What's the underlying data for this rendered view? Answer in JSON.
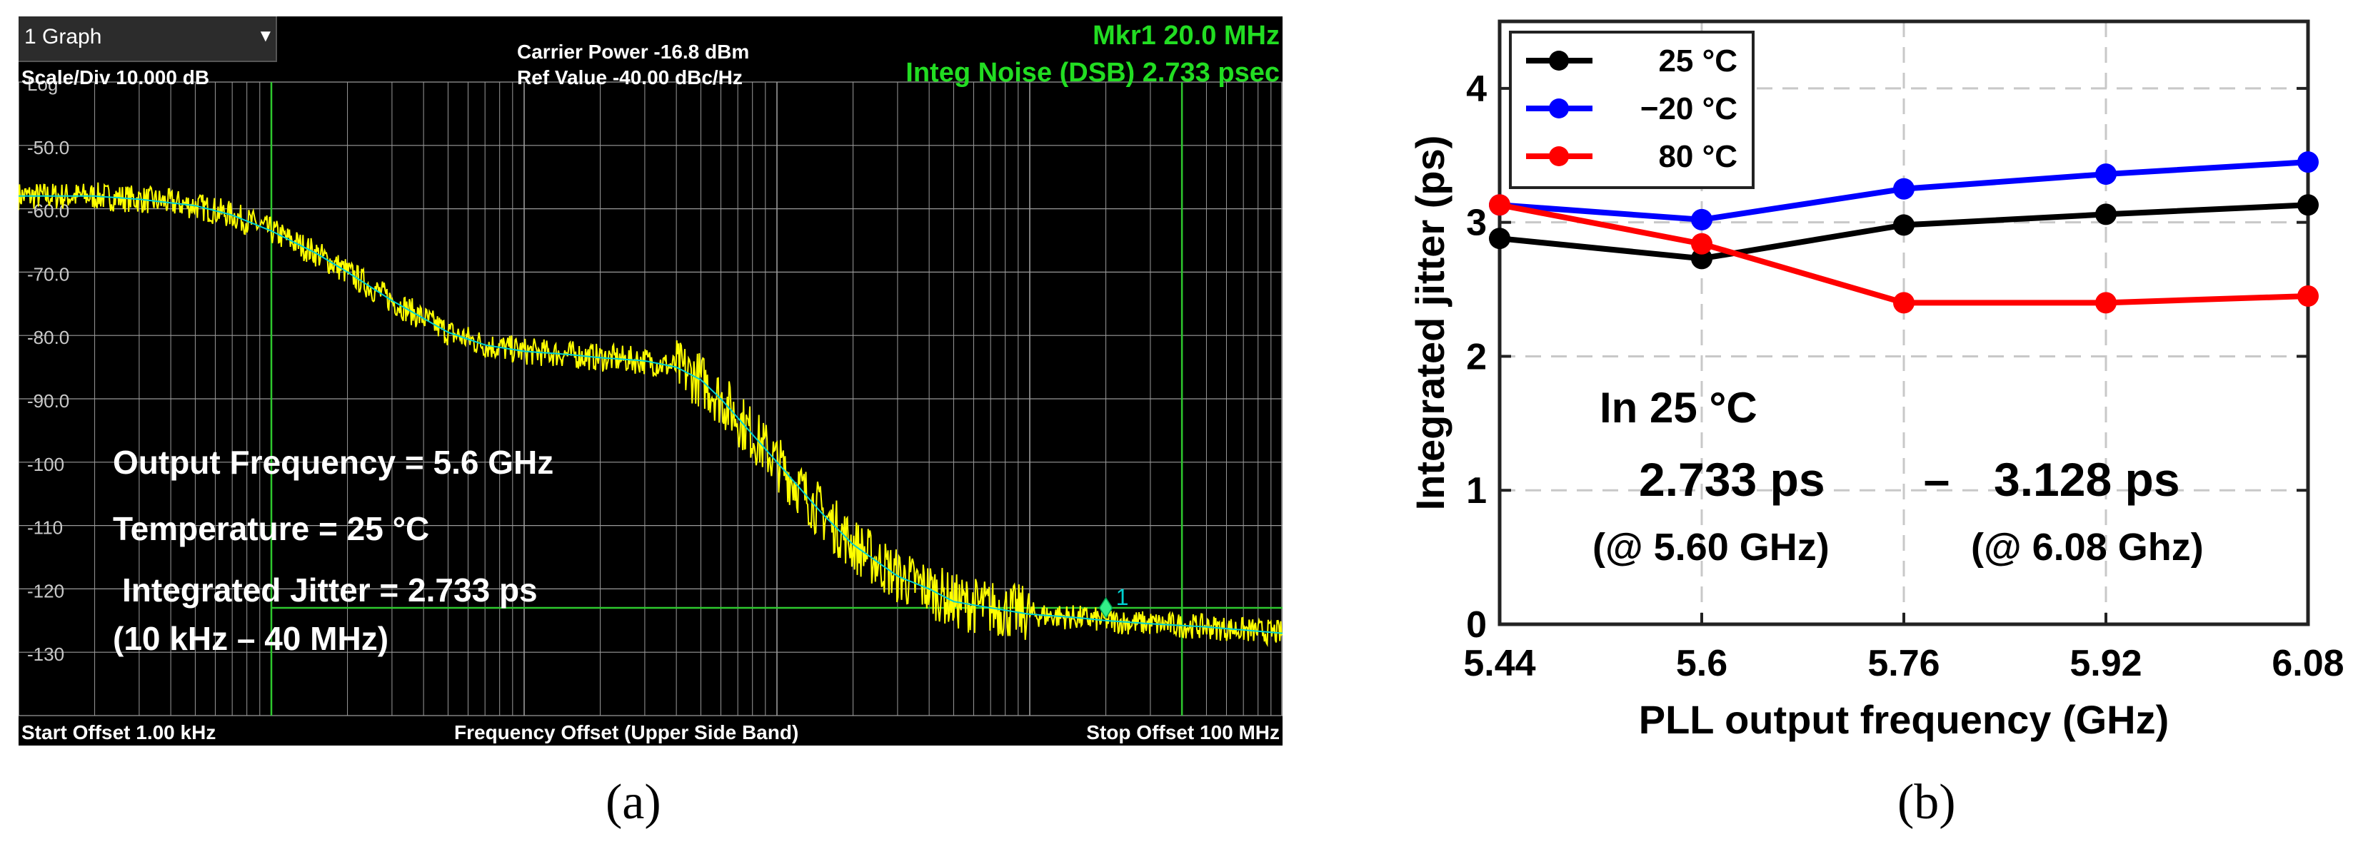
{
  "panel_a": {
    "dropdown_label": "1 Graph",
    "scale_div": "Scale/Div 10.000 dB",
    "log_label": "Log",
    "carrier_power": "Carrier Power -16.8 dBm",
    "ref_value": "Ref Value -40.00 dBc/Hz",
    "marker": "Mkr1  20.0 MHz",
    "integ_noise": "Integ Noise (DSB)  2.733 psec",
    "start_offset": "Start Offset 1.00 kHz",
    "x_axis_label": "Frequency Offset (Upper Side Band)",
    "stop_offset": "Stop Offset 100 MHz",
    "annotations": [
      "Output Frequency = 5.6 GHz",
      "Temperature = 25 °C",
      " Integrated Jitter = 2.733 ps",
      "(10 kHz – 40 MHz)"
    ],
    "marker_tag": "1",
    "caption": "(a)",
    "colors": {
      "trace": "#ffff00",
      "smooth": "#00d0d0",
      "grid": "#9a9a9a",
      "green_lines": "#2ec82e",
      "header_green": "#22dd22"
    }
  },
  "panel_b": {
    "caption": "(b)",
    "in_label": "In 25 °C",
    "value_low": "2.733 ps",
    "dash": "–",
    "value_high": "3.128 ps",
    "at_low": "(@ 5.60 GHz)",
    "at_high": "(@ 6.08 Ghz)"
  },
  "chart_data": [
    {
      "type": "line",
      "title": "",
      "xlabel": "Frequency Offset (Upper Side Band)",
      "ylabel": "",
      "x_scale": "log",
      "x_range_hz": [
        1000,
        100000000
      ],
      "ylim": [
        -140,
        -40
      ],
      "y_ticks": [
        "Log",
        "-50.0",
        "-60.0",
        "-70.0",
        "-80.0",
        "-90.0",
        "-100",
        "-110",
        "-120",
        "-130"
      ],
      "marker": {
        "x_hz": 20000000,
        "y": -123,
        "label": "1"
      },
      "integration_limits_hz": [
        10000,
        40000000
      ],
      "series": [
        {
          "x": [
            1000,
            2000,
            3000,
            5000,
            7000,
            10000,
            15000,
            20000,
            30000,
            50000,
            70000,
            100000,
            150000,
            200000,
            300000,
            400000,
            500000,
            600000,
            700000,
            1000000,
            1500000,
            2000000,
            3000000,
            4000000,
            5000000,
            7000000,
            10000000,
            15000000,
            20000000,
            30000000,
            50000000,
            100000000
          ],
          "values": [
            -58,
            -58,
            -58.5,
            -59.5,
            -61,
            -63.5,
            -67,
            -70,
            -74.5,
            -79.5,
            -81.5,
            -82.5,
            -83,
            -83.5,
            -84,
            -85,
            -87,
            -90,
            -93,
            -100,
            -108,
            -113,
            -118,
            -120,
            -122,
            -123,
            -124,
            -124.5,
            -125,
            -125.5,
            -126,
            -127
          ]
        }
      ]
    },
    {
      "type": "line",
      "title": "",
      "xlabel": "PLL output frequency (GHz)",
      "ylabel": "Integrated jitter (ps)",
      "categories": [
        "5.44",
        "5.6",
        "5.76",
        "5.92",
        "6.08"
      ],
      "ylim": [
        0,
        4.5
      ],
      "y_ticks": [
        "0",
        "1",
        "2",
        "3",
        "4"
      ],
      "grid": true,
      "legend_position": "top-left",
      "series": [
        {
          "name": "25 °C",
          "color": "#000000",
          "values": [
            2.88,
            2.73,
            2.98,
            3.06,
            3.13
          ]
        },
        {
          "name": "−20 °C",
          "color": "#0000ff",
          "values": [
            3.13,
            3.02,
            3.25,
            3.36,
            3.45
          ]
        },
        {
          "name": "80 °C",
          "color": "#ff0000",
          "values": [
            3.13,
            2.84,
            2.4,
            2.4,
            2.45
          ]
        }
      ]
    }
  ]
}
